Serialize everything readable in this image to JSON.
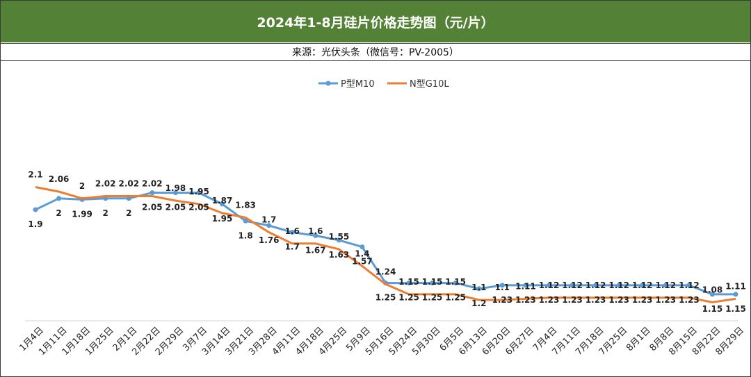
{
  "header": {
    "title": "2024年1-8月硅片价格走势图（元/片）",
    "source": "来源：光伏头条（微信号：PV-2005）"
  },
  "chart_data": {
    "type": "line",
    "title": "2024年1-8月硅片价格走势图（元/片）",
    "categories": [
      "1月4日",
      "1月11日",
      "1月18日",
      "1月25日",
      "2月1日",
      "2月22日",
      "2月29日",
      "3月7日",
      "3月14日",
      "3月21日",
      "3月28日",
      "4月11日",
      "4月18日",
      "4月25日",
      "5月9日",
      "5月16日",
      "5月24日",
      "5月30日",
      "6月5日",
      "6月13日",
      "6月20日",
      "6月27日",
      "7月4日",
      "7月11日",
      "7月18日",
      "7月25日",
      "8月1日",
      "8月8日",
      "8月15日",
      "8月22日",
      "8月29日"
    ],
    "series": [
      {
        "name": "P型M10",
        "color": "#5b9bd5",
        "values": [
          1.9,
          2,
          1.99,
          2,
          2,
          2.05,
          2.05,
          2.05,
          1.95,
          1.8,
          1.76,
          1.7,
          1.67,
          1.63,
          1.57,
          1.25,
          1.25,
          1.25,
          1.25,
          1.2,
          1.23,
          1.23,
          1.23,
          1.23,
          1.23,
          1.23,
          1.23,
          1.23,
          1.23,
          1.15,
          1.15
        ],
        "labels": [
          "1.9",
          "2",
          "1.99",
          "2",
          "2",
          "2.05",
          "2.05",
          "2.05",
          "1.95",
          "1.8",
          "1.76",
          "1.7",
          "1.67",
          "1.63",
          "1.57",
          "1.25",
          "1.25",
          "1.25",
          "1.25",
          "1.2",
          "1.23",
          "1.23",
          "1.23",
          "1.23",
          "1.23",
          "1.23",
          "1.23",
          "1.23",
          "1.23",
          "1.15",
          "1.15"
        ]
      },
      {
        "name": "N型G10L",
        "color": "#ed7d31",
        "values": [
          2.1,
          2.06,
          2,
          2.02,
          2.02,
          2.02,
          1.98,
          1.95,
          1.87,
          1.83,
          1.7,
          1.6,
          1.6,
          1.55,
          1.4,
          1.24,
          1.15,
          1.15,
          1.15,
          1.1,
          1.1,
          1.11,
          1.12,
          1.12,
          1.12,
          1.12,
          1.12,
          1.12,
          1.12,
          1.08,
          1.11
        ],
        "labels": [
          "2.1",
          "2.06",
          "2",
          "2.02",
          "2.02",
          "2.02",
          "1.98",
          "1.95",
          "1.87",
          "1.83",
          "1.7",
          "1.6",
          "1.6",
          "1.55",
          "1.4",
          "1.24",
          "1.15",
          "1.15",
          "1.15",
          "1.1",
          "1.1",
          "1.11",
          "1.12",
          "1.12",
          "1.12",
          "1.12",
          "1.12",
          "1.12",
          "1.12",
          "1.08",
          "1.11"
        ]
      }
    ],
    "legend_position": "top-center",
    "grid": false
  }
}
